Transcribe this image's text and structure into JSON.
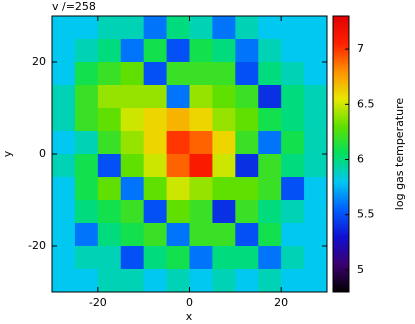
{
  "chart_data": {
    "type": "heatmap",
    "title": "v /=258",
    "xlabel": "x",
    "ylabel": "y",
    "colorbar_label": "log gas temperature",
    "xlim": [
      -30,
      30
    ],
    "ylim": [
      -30,
      30
    ],
    "xticks": [
      -20,
      0,
      20
    ],
    "yticks": [
      -20,
      0,
      20
    ],
    "zlim": [
      4.8,
      7.3
    ],
    "cticks": [
      5,
      5.5,
      6,
      6.5,
      7
    ],
    "colorscale": [
      "#000000",
      "#3c0070",
      "#1010d0",
      "#0060ff",
      "#00c8f0",
      "#00e060",
      "#60e000",
      "#e8e800",
      "#ff9000",
      "#ff2000",
      "#e00000"
    ],
    "z": [
      [
        5.8,
        5.8,
        5.9,
        5.9,
        5.6,
        6.0,
        5.9,
        5.6,
        5.9,
        5.8,
        5.8,
        5.8
      ],
      [
        5.8,
        5.9,
        6.0,
        5.6,
        6.1,
        5.5,
        6.1,
        6.0,
        5.6,
        5.9,
        5.8,
        5.8
      ],
      [
        5.8,
        6.1,
        6.2,
        6.3,
        5.5,
        6.2,
        6.2,
        6.2,
        5.5,
        6.0,
        5.9,
        5.8
      ],
      [
        5.9,
        6.2,
        6.4,
        6.4,
        6.4,
        5.6,
        6.4,
        6.3,
        6.2,
        5.4,
        6.0,
        5.9
      ],
      [
        5.9,
        6.2,
        6.3,
        6.5,
        6.6,
        6.7,
        6.6,
        6.4,
        6.3,
        6.1,
        6.0,
        5.9
      ],
      [
        5.8,
        5.9,
        6.2,
        6.4,
        6.6,
        7.0,
        6.9,
        6.6,
        6.2,
        5.6,
        6.1,
        5.9
      ],
      [
        5.9,
        6.1,
        5.5,
        6.3,
        6.5,
        6.9,
        7.1,
        6.5,
        5.4,
        6.2,
        6.0,
        5.9
      ],
      [
        5.8,
        6.1,
        6.3,
        5.6,
        6.3,
        6.5,
        6.4,
        6.3,
        6.3,
        6.2,
        5.5,
        5.8
      ],
      [
        5.8,
        6.0,
        6.1,
        6.2,
        5.5,
        6.3,
        6.2,
        5.4,
        6.2,
        6.0,
        5.9,
        5.8
      ],
      [
        5.8,
        5.6,
        6.0,
        6.1,
        6.2,
        5.6,
        6.2,
        6.2,
        5.5,
        6.1,
        5.8,
        5.8
      ],
      [
        5.8,
        5.9,
        5.9,
        5.5,
        6.0,
        6.1,
        5.6,
        6.0,
        6.0,
        5.6,
        5.9,
        5.8
      ],
      [
        5.8,
        5.8,
        5.9,
        5.9,
        5.8,
        5.9,
        5.8,
        5.9,
        5.8,
        5.9,
        5.8,
        5.8
      ]
    ]
  }
}
